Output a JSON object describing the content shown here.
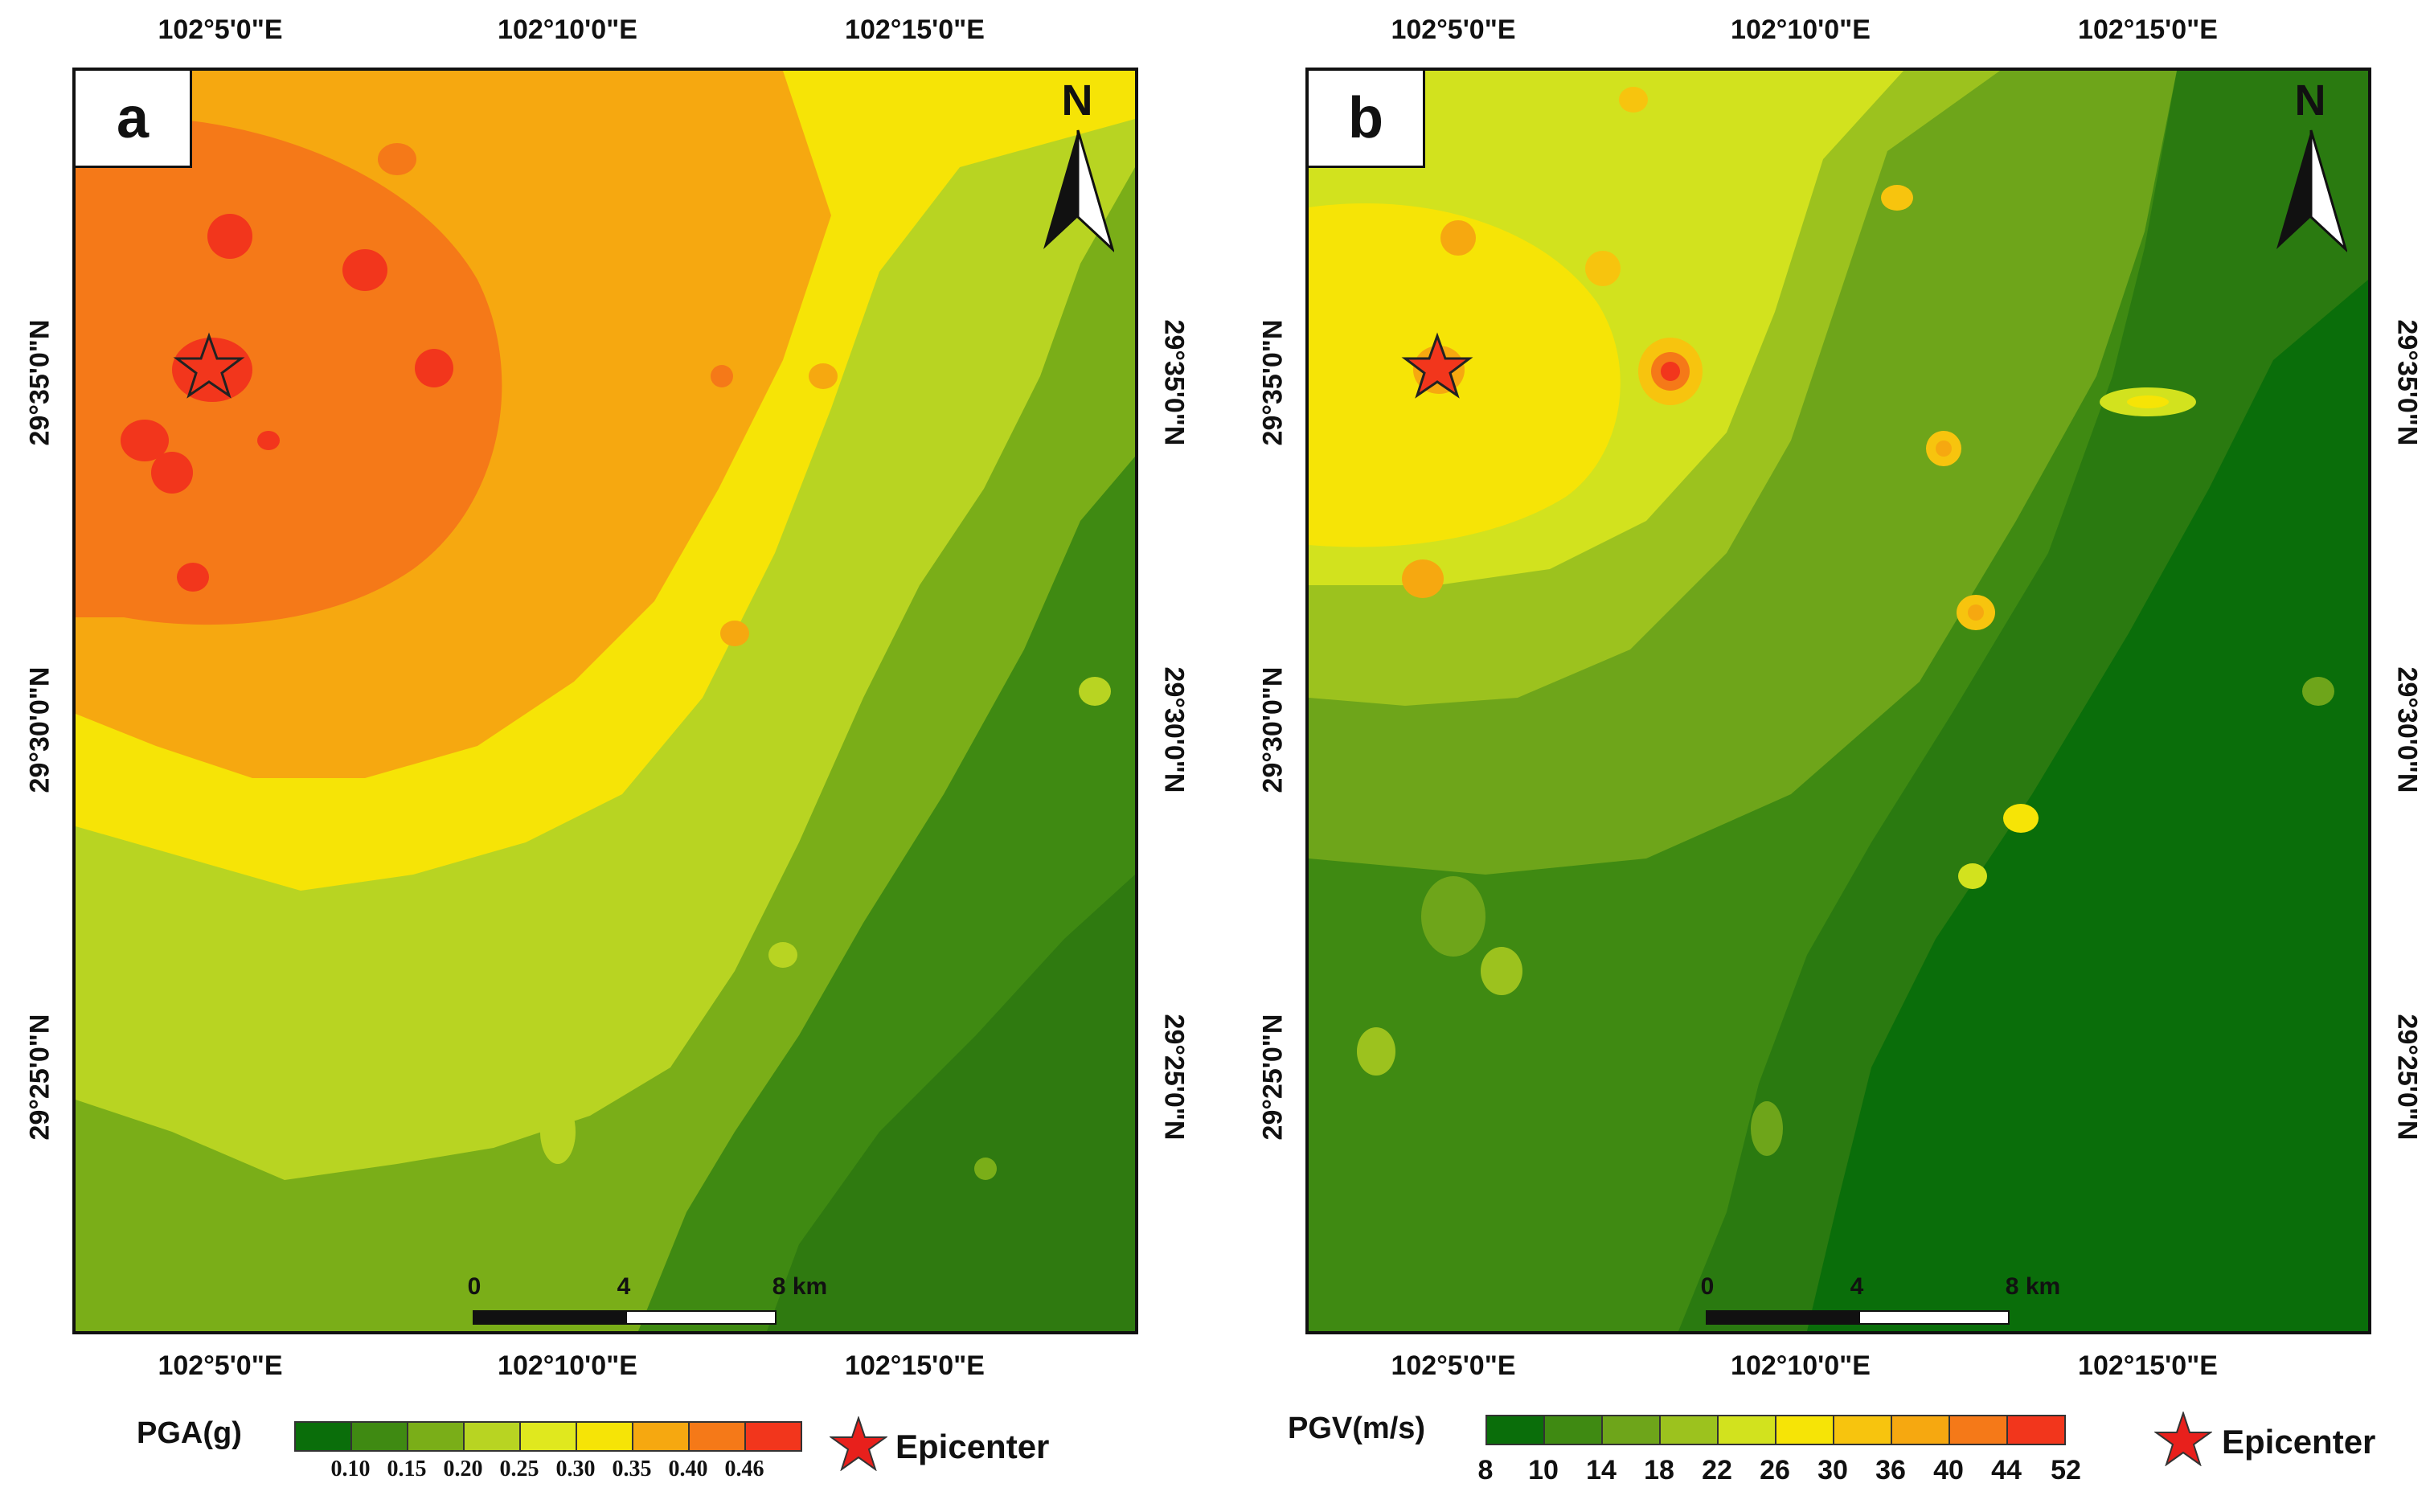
{
  "panels": [
    {
      "label": "a",
      "top_ticks": [
        "102°5'0\"E",
        "102°10'0\"E",
        "102°15'0\"E"
      ],
      "bottom_ticks": [
        "102°5'0\"E",
        "102°10'0\"E",
        "102°15'0\"E"
      ],
      "left_ticks": [
        "29°35'0\"N",
        "29°30'0\"N",
        "29°25'0\"N"
      ],
      "right_ticks": [
        "29°35'0\"N",
        "29°30'0\"N",
        "29°25'0\"N"
      ],
      "north_label": "N",
      "scale": {
        "zero": "0",
        "mid": "4",
        "end": "8 km"
      },
      "legend": {
        "title": "PGA(g)",
        "labels": [
          "0.10",
          "0.15",
          "0.20",
          "0.25",
          "0.30",
          "0.35",
          "0.40",
          "0.46"
        ],
        "colors": [
          "#0a6e0a",
          "#3f8a12",
          "#7aae18",
          "#b8d422",
          "#e0e81e",
          "#f6e406",
          "#f6a810",
          "#f57918",
          "#f2361c"
        ]
      },
      "epicenter_label": "Epicenter"
    },
    {
      "label": "b",
      "top_ticks": [
        "102°5'0\"E",
        "102°10'0\"E",
        "102°15'0\"E"
      ],
      "bottom_ticks": [
        "102°5'0\"E",
        "102°10'0\"E",
        "102°15'0\"E"
      ],
      "left_ticks": [
        "29°35'0\"N",
        "29°30'0\"N",
        "29°25'0\"N"
      ],
      "right_ticks": [
        "29°35'0\"N",
        "29°30'0\"N",
        "29°25'0\"N"
      ],
      "north_label": "N",
      "scale": {
        "zero": "0",
        "mid": "4",
        "end": "8 km"
      },
      "legend": {
        "title": "PGV(m/s)",
        "labels": [
          "8",
          "10",
          "14",
          "18",
          "22",
          "26",
          "30",
          "36",
          "40",
          "44",
          "52"
        ],
        "colors": [
          "#0a6e0a",
          "#3f8a12",
          "#6ea51a",
          "#9cc21e",
          "#d2e21e",
          "#f6e406",
          "#f7c40e",
          "#f6a810",
          "#f57918",
          "#f2361c"
        ]
      },
      "epicenter_label": "Epicenter"
    }
  ]
}
